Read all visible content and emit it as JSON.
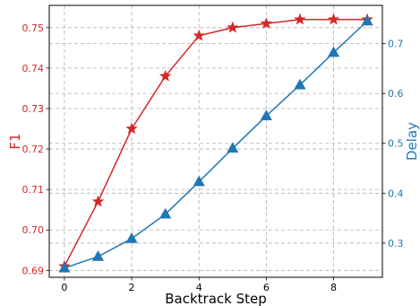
{
  "chart_data": {
    "type": "line",
    "xlabel": "Backtrack Step",
    "ylabel_left": "F1",
    "ylabel_right": "Delay",
    "x": [
      0,
      1,
      2,
      3,
      4,
      5,
      6,
      7,
      8,
      9
    ],
    "xlim": [
      -0.45,
      9.45
    ],
    "ylim_left": [
      0.6883,
      0.7555
    ],
    "ylim_right": [
      0.2315,
      0.7765
    ],
    "x_ticks": [
      0,
      2,
      4,
      6,
      8
    ],
    "y_ticks_left": [
      0.69,
      0.7,
      0.71,
      0.72,
      0.73,
      0.74,
      0.75
    ],
    "y_ticks_right": [
      0.3,
      0.4,
      0.5,
      0.6,
      0.7
    ],
    "grid": true,
    "series": [
      {
        "axis": "left",
        "color": "#d62728",
        "marker": "star",
        "values": [
          0.691,
          0.707,
          0.725,
          0.738,
          0.748,
          0.75,
          0.751,
          0.752,
          0.752,
          0.752
        ]
      },
      {
        "axis": "right",
        "color": "#1f77b4",
        "marker": "triangle",
        "values": [
          0.25,
          0.273,
          0.309,
          0.358,
          0.423,
          0.49,
          0.555,
          0.617,
          0.682,
          0.745
        ]
      }
    ]
  }
}
